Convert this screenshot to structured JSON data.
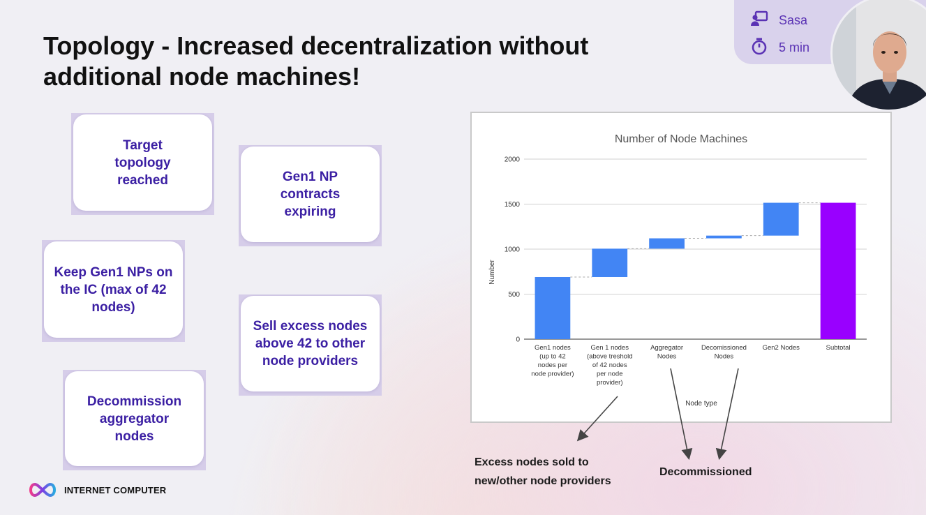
{
  "slide": {
    "title": "Topology - Increased decentralization without additional node machines!",
    "cards": [
      "Target topology reached",
      "Gen1 NP contracts expiring",
      "Keep Gen1 NPs on the IC (max of 42 nodes)",
      "Sell excess nodes above 42 to other node providers",
      "Decommission aggregator nodes"
    ],
    "annotations": {
      "excess": "Excess nodes sold to new/other node providers",
      "decommissioned": "Decommissioned"
    },
    "logo_text": "INTERNET COMPUTER"
  },
  "presenter": {
    "name": "Sasa",
    "duration": "5 min",
    "icons": [
      "presenter-icon",
      "timer-icon"
    ]
  },
  "colors": {
    "increase": "#4285f4",
    "total": "#9900ff",
    "card_text": "#3b1fa3",
    "presenter_panel": "#d9d2ec"
  },
  "chart_data": {
    "type": "waterfall",
    "title": "Number of Node Machines",
    "xlabel": "Node type",
    "ylabel": "Number",
    "ylim": [
      0,
      2000
    ],
    "yticks": [
      0,
      500,
      1000,
      1500,
      2000
    ],
    "grid": true,
    "categories": [
      [
        "Gen1 nodes",
        "(up to 42",
        "nodes per",
        "node provider)"
      ],
      [
        "Gen 1 nodes",
        "(above treshold",
        "of 42 nodes",
        "per node",
        "provider)"
      ],
      [
        "Aggregator",
        "Nodes"
      ],
      [
        "Decomissioned",
        "Nodes"
      ],
      [
        "Gen2 Nodes"
      ],
      [
        "Subtotal"
      ]
    ],
    "bars": [
      {
        "start": 0,
        "end": 690,
        "kind": "increase"
      },
      {
        "start": 690,
        "end": 1005,
        "kind": "increase"
      },
      {
        "start": 1005,
        "end": 1120,
        "kind": "increase"
      },
      {
        "start": 1120,
        "end": 1150,
        "kind": "increase"
      },
      {
        "start": 1150,
        "end": 1515,
        "kind": "increase"
      },
      {
        "start": 0,
        "end": 1515,
        "kind": "total"
      }
    ]
  }
}
